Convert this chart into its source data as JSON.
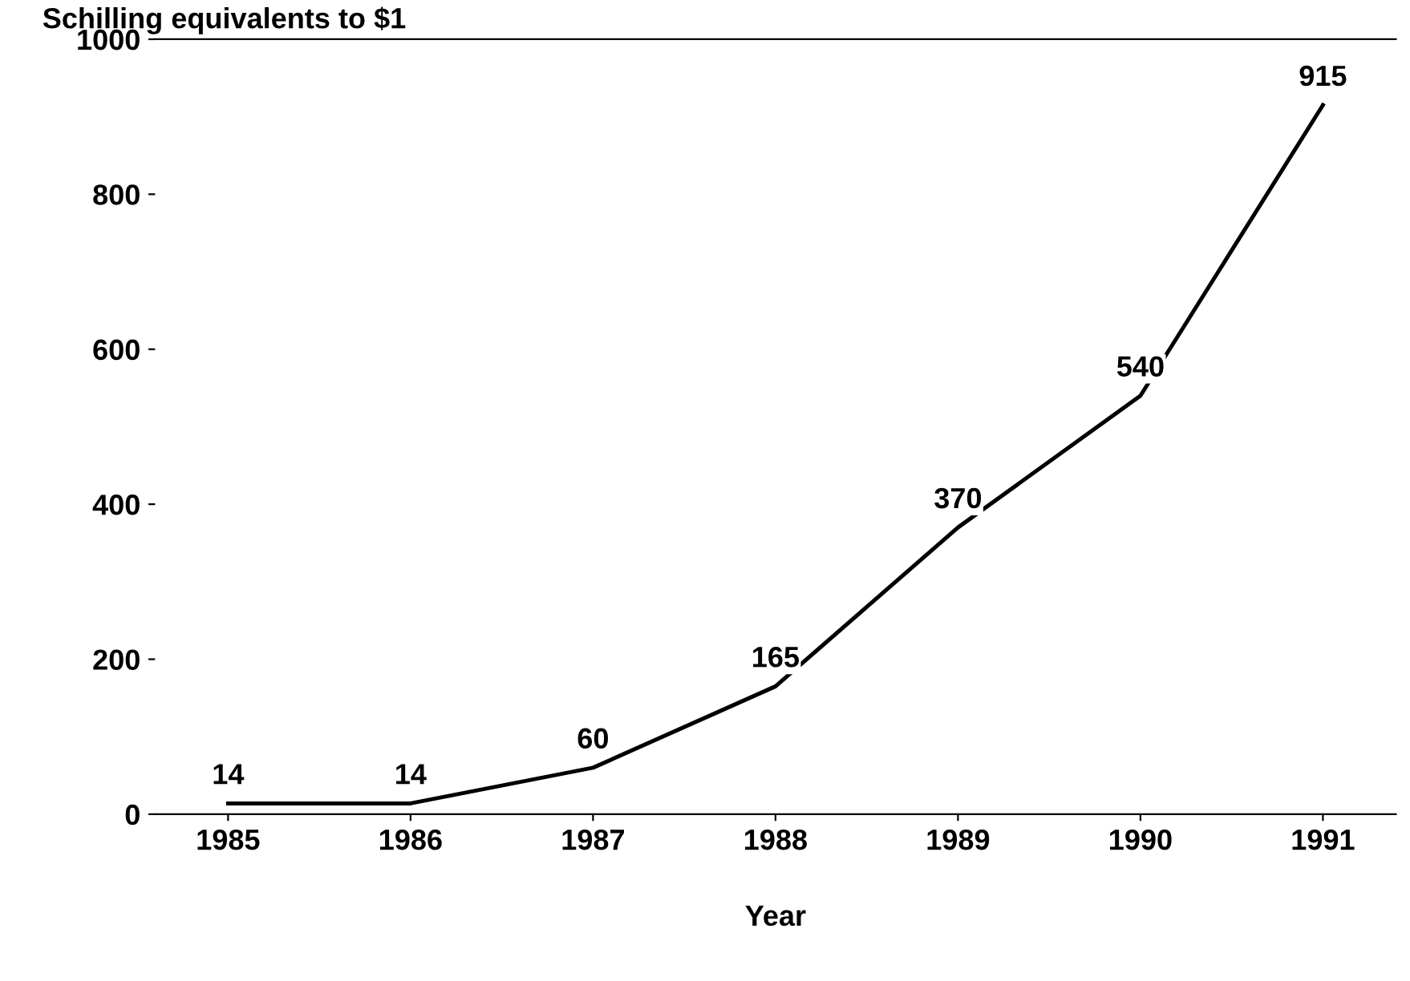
{
  "chart_data": {
    "type": "line",
    "ylabel": "Schilling equivalents to $1",
    "xlabel": "Year",
    "categories": [
      "1985",
      "1986",
      "1987",
      "1988",
      "1989",
      "1990",
      "1991"
    ],
    "series": [
      {
        "color": "#000000",
        "values": [
          14,
          14,
          60,
          165,
          370,
          540,
          915
        ]
      }
    ],
    "ylim": [
      0,
      1000
    ],
    "yticks": [
      0,
      200,
      400,
      600,
      800,
      1000
    ],
    "data_labels": true,
    "grid": false,
    "legend": false,
    "marker": "none",
    "line_style": "solid"
  }
}
